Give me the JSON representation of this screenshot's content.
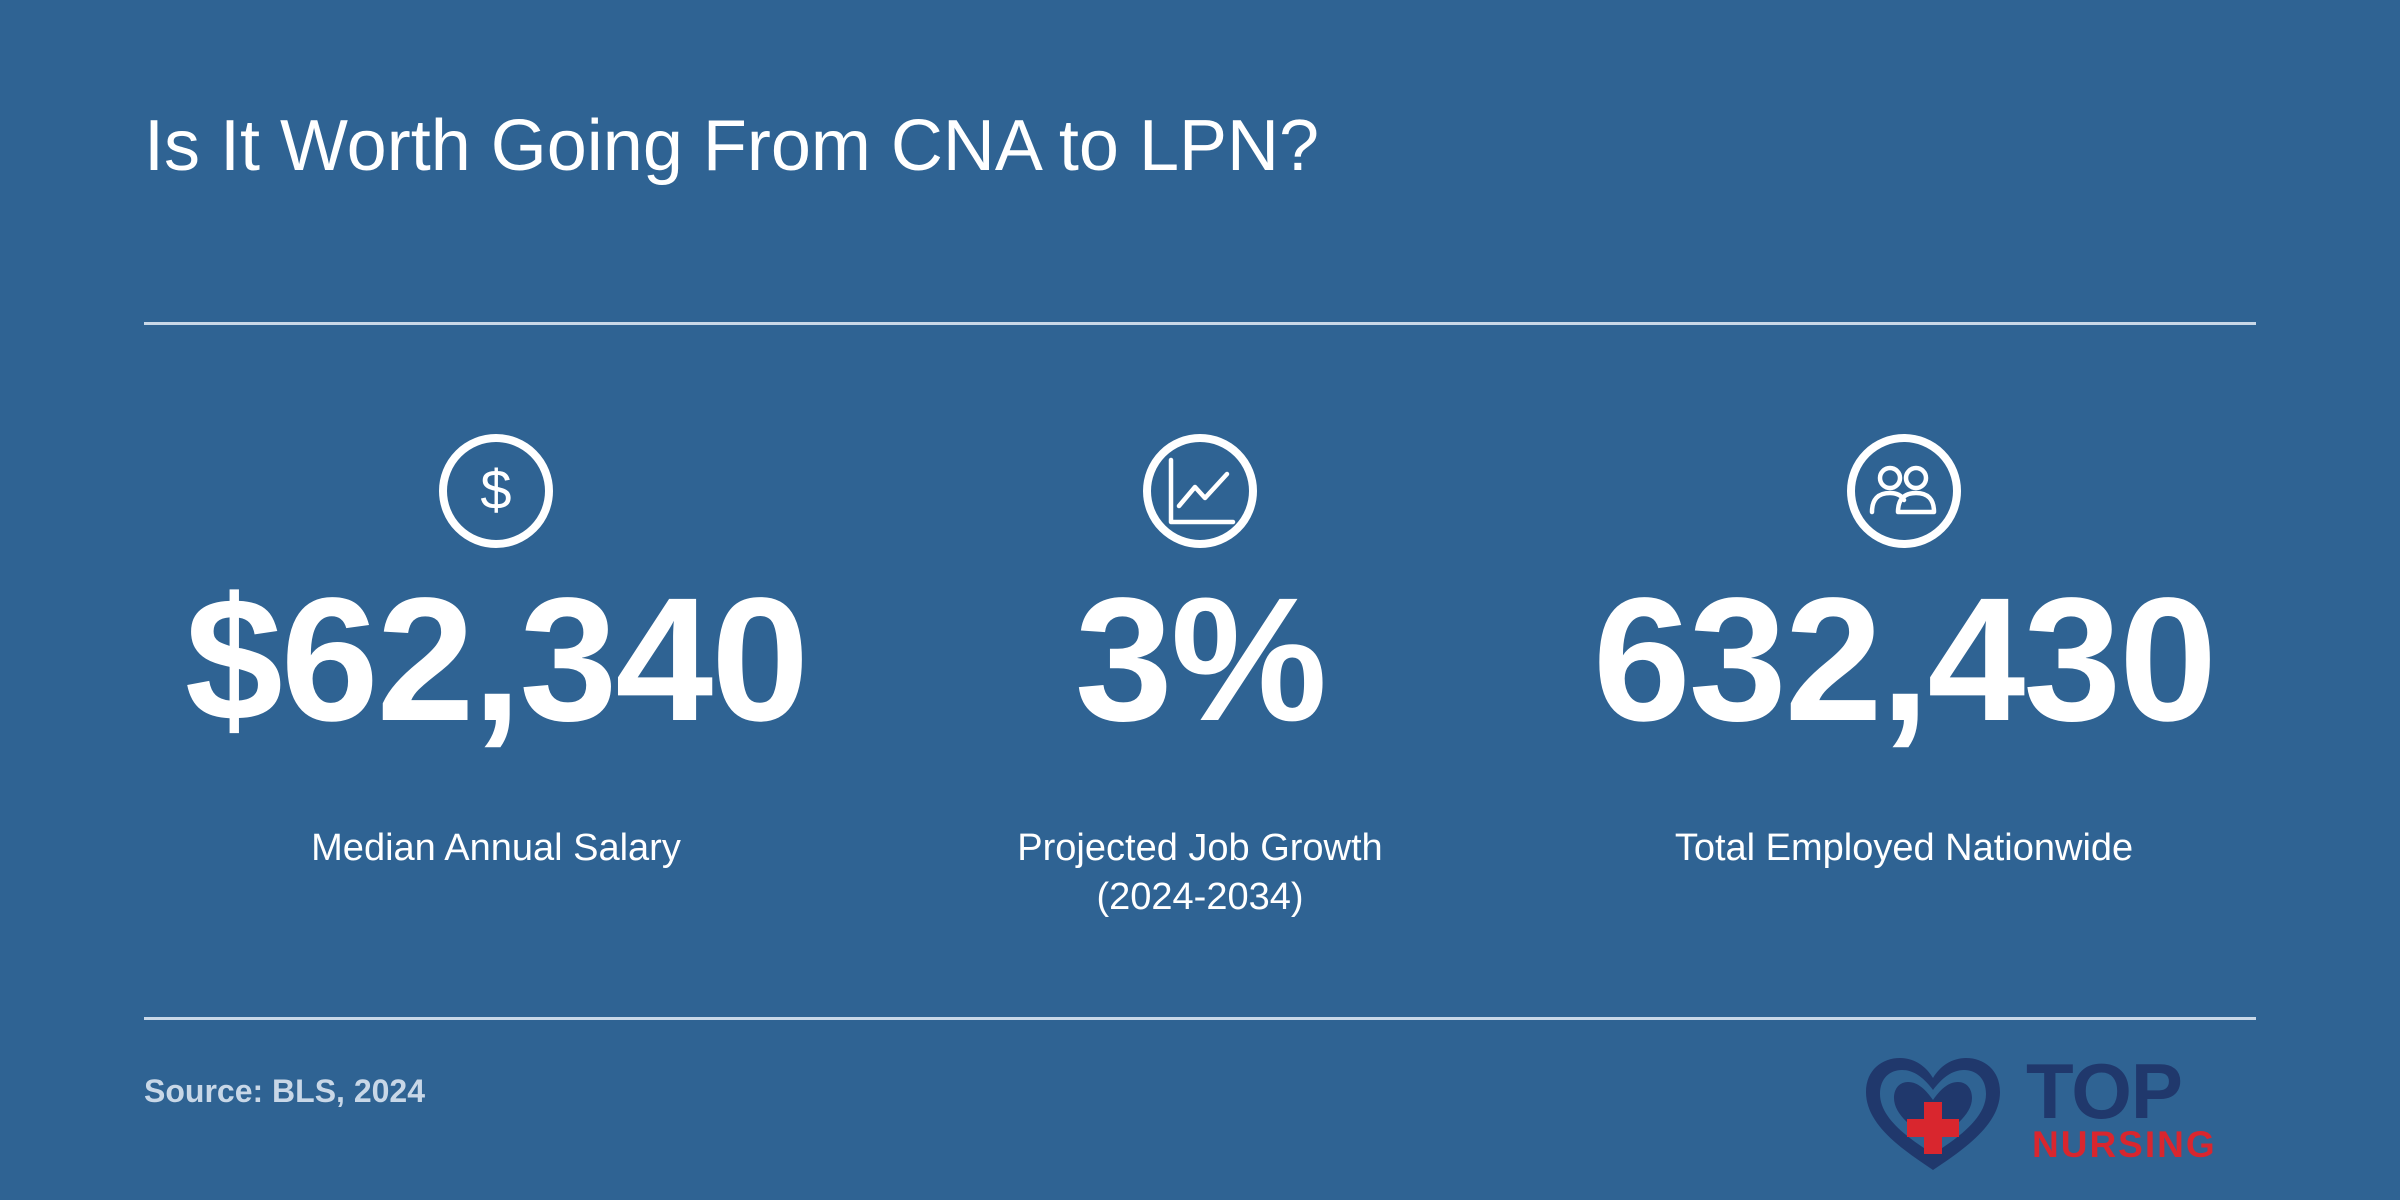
{
  "title": "Is It Worth Going From CNA to LPN?",
  "stats": [
    {
      "icon": "dollar-icon",
      "value": "$62,340",
      "label_lines": [
        "Median Annual Salary"
      ]
    },
    {
      "icon": "line-chart-icon",
      "value": "3%",
      "label_lines": [
        "Projected Job Growth",
        "(2024-2034)"
      ]
    },
    {
      "icon": "people-icon",
      "value": "632,430",
      "label_lines": [
        "Total Employed Nationwide"
      ]
    }
  ],
  "source": "Source: BLS, 2024",
  "logo": {
    "line1": "TOP",
    "line2": "NURSING",
    "icon": "heart-cross-icon"
  },
  "colors": {
    "background": "#2f6393",
    "text": "#ffffff",
    "rule": "#c9d8e8",
    "logo_navy": "#20386c",
    "logo_red": "#d9262e"
  }
}
